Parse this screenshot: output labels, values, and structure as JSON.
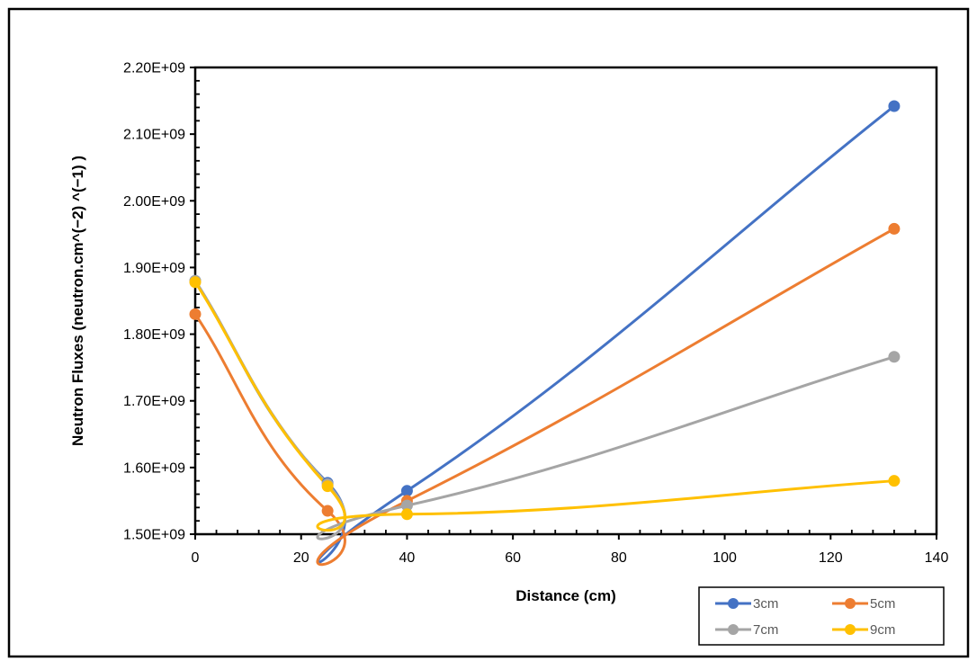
{
  "chart_data": {
    "type": "line",
    "title": "",
    "xlabel": "Distance (cm)",
    "ylabel": "Neutron Fluxes (neutron.cm^(−2) ^(−1) )",
    "xlim": [
      0,
      140
    ],
    "ylim": [
      1500000000,
      2200000000
    ],
    "x_ticks": [
      0,
      20,
      40,
      60,
      80,
      100,
      120,
      140
    ],
    "x_tick_labels": [
      "0",
      "20",
      "40",
      "60",
      "80",
      "100",
      "120",
      "140"
    ],
    "y_ticks": [
      1500000000,
      1600000000,
      1700000000,
      1800000000,
      1900000000,
      2000000000,
      2100000000,
      2200000000
    ],
    "y_tick_labels": [
      "1.50E+09",
      "1.60E+09",
      "1.70E+09",
      "1.80E+09",
      "1.90E+09",
      "2.00E+09",
      "2.10E+09",
      "2.20E+09"
    ],
    "grid": false,
    "smoothed": true,
    "legend_position": "bottom-right",
    "x": [
      0,
      25,
      40,
      132
    ],
    "series": [
      {
        "name": "3cm",
        "color": "#4472C4",
        "values": [
          1880000000,
          1577000000,
          1565000000,
          2142000000
        ]
      },
      {
        "name": "5cm",
        "color": "#ED7D31",
        "values": [
          1830000000,
          1535000000,
          1550000000,
          1958000000
        ]
      },
      {
        "name": "7cm",
        "color": "#A5A5A5",
        "values": [
          1880000000,
          1575000000,
          1543000000,
          1766000000
        ]
      },
      {
        "name": "9cm",
        "color": "#FFC000",
        "values": [
          1878000000,
          1572000000,
          1530000000,
          1580000000
        ]
      }
    ]
  }
}
